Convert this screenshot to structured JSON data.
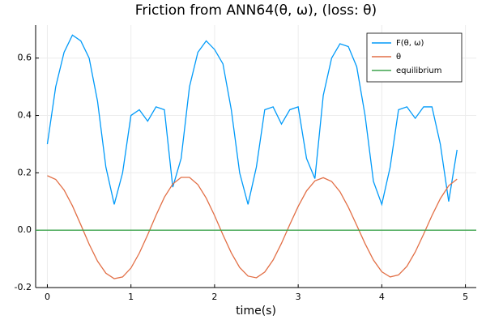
{
  "chart_data": {
    "type": "line",
    "title": "Friction from ANN64(θ, ω), (loss: θ)",
    "x_label": "time(s)",
    "x": [
      0,
      0.1,
      0.2,
      0.3,
      0.4,
      0.5,
      0.6,
      0.7,
      0.8,
      0.9,
      1.0,
      1.1,
      1.2,
      1.3,
      1.4,
      1.5,
      1.6,
      1.7,
      1.8,
      1.9,
      2.0,
      2.1,
      2.2,
      2.3,
      2.4,
      2.5,
      2.6,
      2.7,
      2.8,
      2.9,
      3.0,
      3.1,
      3.2,
      3.3,
      3.4,
      3.5,
      3.6,
      3.7,
      3.8,
      3.9,
      4.0,
      4.1,
      4.2,
      4.3,
      4.4,
      4.5,
      4.6,
      4.7,
      4.8,
      4.9
    ],
    "series": [
      {
        "name": "F(θ, ω)",
        "color": "#009af9",
        "values": [
          0.3,
          0.5,
          0.62,
          0.68,
          0.66,
          0.6,
          0.45,
          0.22,
          0.09,
          0.2,
          0.4,
          0.42,
          0.38,
          0.43,
          0.42,
          0.15,
          0.25,
          0.5,
          0.62,
          0.66,
          0.63,
          0.58,
          0.42,
          0.2,
          0.09,
          0.22,
          0.42,
          0.43,
          0.37,
          0.42,
          0.43,
          0.25,
          0.18,
          0.47,
          0.6,
          0.65,
          0.64,
          0.57,
          0.4,
          0.17,
          0.09,
          0.22,
          0.42,
          0.43,
          0.39,
          0.43,
          0.43,
          0.3,
          0.1,
          0.28
        ]
      },
      {
        "name": "θ",
        "color": "#e26f46",
        "values": [
          0.19,
          0.177,
          0.14,
          0.085,
          0.019,
          -0.049,
          -0.108,
          -0.15,
          -0.169,
          -0.163,
          -0.132,
          -0.08,
          -0.016,
          0.052,
          0.115,
          0.161,
          0.184,
          0.184,
          0.159,
          0.112,
          0.051,
          -0.016,
          -0.079,
          -0.13,
          -0.16,
          -0.166,
          -0.146,
          -0.104,
          -0.046,
          0.02,
          0.083,
          0.137,
          0.172,
          0.183,
          0.17,
          0.134,
          0.08,
          0.017,
          -0.047,
          -0.104,
          -0.145,
          -0.163,
          -0.156,
          -0.126,
          -0.076,
          -0.014,
          0.051,
          0.11,
          0.155,
          0.178
        ]
      },
      {
        "name": "equilibrium",
        "color": "#3da44d",
        "x": [
          -0.14,
          5.13
        ],
        "values": [
          0,
          0
        ]
      }
    ],
    "xlim": [
      -0.14,
      5.13
    ],
    "ylim": [
      -0.2,
      0.715
    ],
    "xticks": [
      0,
      1,
      2,
      3,
      4,
      5
    ],
    "yticks": [
      -0.2,
      {
        "value": 0,
        "label": "0.0"
      },
      0.2,
      0.4,
      0.6
    ],
    "grid": true,
    "legend": "top-right"
  }
}
